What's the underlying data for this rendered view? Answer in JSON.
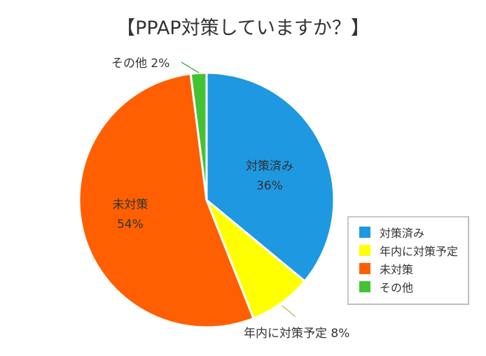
{
  "title": "【PPAP対策していますか？】",
  "chart_data": {
    "type": "pie",
    "title": "【PPAP対策していますか？】",
    "categories": [
      "対策済み",
      "年内に対策予定",
      "未対策",
      "その他"
    ],
    "values": [
      36,
      8,
      54,
      2
    ],
    "unit": "%",
    "colors": [
      "#1e98e0",
      "#ffff00",
      "#ff5f00",
      "#44c234"
    ],
    "start_angle": "12 o'clock, clockwise",
    "legend_position": "right-bottom",
    "data_labels": [
      {
        "category": "対策済み",
        "text": "対策済み",
        "value_text": "36%",
        "position": "inside"
      },
      {
        "category": "年内に対策予定",
        "text": "年内に対策予定 8%",
        "position": "outside-bottom",
        "leader_line": true
      },
      {
        "category": "未対策",
        "text": "未対策",
        "value_text": "54%",
        "position": "inside"
      },
      {
        "category": "その他",
        "text": "その他 2%",
        "position": "outside-top-left",
        "leader_line": true
      }
    ]
  },
  "labels": {
    "done_name": "対策済み",
    "done_pct": "36%",
    "planned_outside": "年内に対策予定 8%",
    "none_name": "未対策",
    "none_pct": "54%",
    "other_outside": "その他 2%"
  },
  "legend": {
    "items": [
      {
        "label": "対策済み",
        "color": "#1e98e0"
      },
      {
        "label": "年内に対策予定",
        "color": "#ffff00"
      },
      {
        "label": "未対策",
        "color": "#ff5f00"
      },
      {
        "label": "その他",
        "color": "#44c234"
      }
    ]
  }
}
